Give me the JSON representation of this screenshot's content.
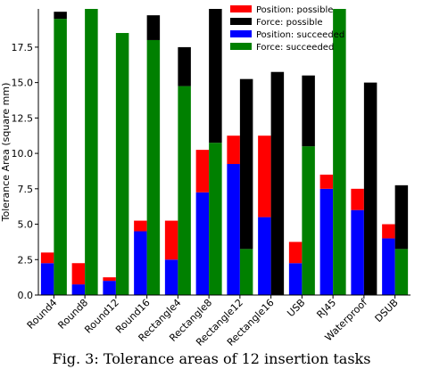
{
  "caption": "Fig. 3: Tolerance areas of 12 insertion tasks",
  "chart_data": {
    "type": "bar",
    "stacked": true,
    "title": "",
    "xlabel": "",
    "ylabel": "Tolerance Area (square mm)",
    "ylim": [
      0,
      20.2
    ],
    "yticks": [
      "0.0",
      "2.5",
      "5.0",
      "7.5",
      "10.0",
      "12.5",
      "15.0",
      "17.5"
    ],
    "grid": false,
    "legend_position": "top-right",
    "categories": [
      "Round4",
      "Round8",
      "Round12",
      "Round16",
      "Rectangle4",
      "Rectangle8",
      "Rectangle12",
      "Rectangle16",
      "USB",
      "RJ45",
      "Waterproof",
      "DSUB"
    ],
    "series": [
      {
        "name": "Position: succeeded",
        "color": "#0000ff",
        "group": "position",
        "values": [
          2.25,
          0.75,
          1.0,
          4.5,
          2.5,
          7.25,
          9.25,
          5.5,
          2.25,
          7.5,
          6.0,
          4.0
        ]
      },
      {
        "name": "Position: possible",
        "color": "#ff0000",
        "group": "position",
        "values": [
          0.75,
          1.5,
          0.25,
          0.75,
          2.75,
          3.0,
          2.0,
          5.75,
          1.5,
          1.0,
          1.5,
          1.0
        ]
      },
      {
        "name": "Force: succeeded",
        "color": "#008000",
        "group": "force",
        "values": [
          19.5,
          20.2,
          18.5,
          18.0,
          14.75,
          10.75,
          3.25,
          0.0,
          10.5,
          20.2,
          0.0,
          3.25
        ]
      },
      {
        "name": "Force: possible",
        "color": "#000000",
        "group": "force",
        "values": [
          0.5,
          0.0,
          0.0,
          1.75,
          2.75,
          9.45,
          12.0,
          15.75,
          5.0,
          0.0,
          15.0,
          4.5
        ]
      }
    ],
    "legend": [
      {
        "label": "Position: possible",
        "color": "#ff0000"
      },
      {
        "label": "Force: possible",
        "color": "#000000"
      },
      {
        "label": "Position: succeeded",
        "color": "#0000ff"
      },
      {
        "label": "Force: succeeded",
        "color": "#008000"
      }
    ]
  }
}
